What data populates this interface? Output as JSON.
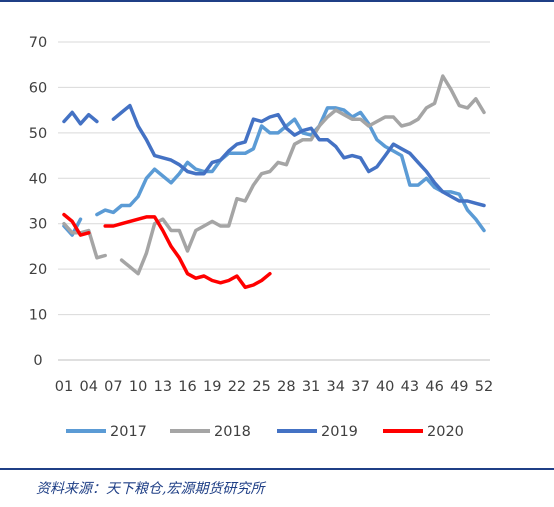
{
  "chart_data": {
    "type": "line",
    "xlabels": [
      "01",
      "04",
      "07",
      "10",
      "13",
      "16",
      "19",
      "22",
      "25",
      "28",
      "31",
      "34",
      "37",
      "40",
      "43",
      "46",
      "49",
      "52"
    ],
    "ylim": [
      0,
      70
    ],
    "yticks": [
      "0",
      "10",
      "20",
      "30",
      "40",
      "50",
      "60",
      "70"
    ],
    "grid": true,
    "legend": "bottom",
    "series": [
      {
        "name": "2017",
        "color": "#5b9bd5",
        "points": [
          [
            1,
            29.5
          ],
          [
            2,
            27.5
          ],
          [
            3,
            31
          ],
          [
            5,
            32
          ],
          [
            6,
            33
          ],
          [
            7,
            32.5
          ],
          [
            8,
            34
          ],
          [
            9,
            34
          ],
          [
            10,
            36
          ],
          [
            11,
            40
          ],
          [
            12,
            42
          ],
          [
            13,
            40.5
          ],
          [
            14,
            39
          ],
          [
            15,
            41
          ],
          [
            16,
            43.5
          ],
          [
            17,
            42
          ],
          [
            18,
            41.5
          ],
          [
            19,
            41.5
          ],
          [
            20,
            44
          ],
          [
            21,
            45.5
          ],
          [
            22,
            45.5
          ],
          [
            23,
            45.5
          ],
          [
            24,
            46.5
          ],
          [
            25,
            51.5
          ],
          [
            26,
            50
          ],
          [
            27,
            50
          ],
          [
            28,
            51.5
          ],
          [
            29,
            53
          ],
          [
            30,
            50
          ],
          [
            31,
            49.5
          ],
          [
            32,
            51.5
          ],
          [
            33,
            55.5
          ],
          [
            34,
            55.5
          ],
          [
            35,
            55
          ],
          [
            36,
            53.5
          ],
          [
            37,
            54.5
          ],
          [
            38,
            52
          ],
          [
            39,
            48.5
          ],
          [
            40,
            47
          ],
          [
            41,
            46
          ],
          [
            42,
            45
          ],
          [
            43,
            38.5
          ],
          [
            44,
            38.5
          ],
          [
            45,
            40
          ],
          [
            46,
            38
          ],
          [
            47,
            37
          ],
          [
            48,
            37
          ],
          [
            49,
            36.5
          ],
          [
            50,
            33
          ],
          [
            51,
            31
          ],
          [
            52,
            28.5
          ]
        ]
      },
      {
        "name": "2018",
        "color": "#a5a5a5",
        "points": [
          [
            1,
            30
          ],
          [
            2,
            28
          ],
          [
            3,
            28
          ],
          [
            4,
            28.5
          ],
          [
            5,
            22.5
          ],
          [
            6,
            23
          ],
          [
            8,
            22
          ],
          [
            9,
            20.5
          ],
          [
            10,
            19
          ],
          [
            11,
            23.5
          ],
          [
            12,
            30
          ],
          [
            13,
            31
          ],
          [
            14,
            28.5
          ],
          [
            15,
            28.5
          ],
          [
            16,
            24
          ],
          [
            17,
            28.5
          ],
          [
            18,
            29.5
          ],
          [
            19,
            30.5
          ],
          [
            20,
            29.5
          ],
          [
            21,
            29.5
          ],
          [
            22,
            35.5
          ],
          [
            23,
            35
          ],
          [
            24,
            38.5
          ],
          [
            25,
            41
          ],
          [
            26,
            41.5
          ],
          [
            27,
            43.5
          ],
          [
            28,
            43
          ],
          [
            29,
            47.5
          ],
          [
            30,
            48.5
          ],
          [
            31,
            48.5
          ],
          [
            32,
            51.5
          ],
          [
            33,
            53.5
          ],
          [
            34,
            55
          ],
          [
            35,
            54
          ],
          [
            36,
            53
          ],
          [
            37,
            53
          ],
          [
            38,
            51.5
          ],
          [
            39,
            52.5
          ],
          [
            40,
            53.5
          ],
          [
            41,
            53.5
          ],
          [
            42,
            51.5
          ],
          [
            43,
            52
          ],
          [
            44,
            53
          ],
          [
            45,
            55.5
          ],
          [
            46,
            56.5
          ],
          [
            47,
            62.5
          ],
          [
            48,
            59.5
          ],
          [
            49,
            56
          ],
          [
            50,
            55.5
          ],
          [
            51,
            57.5
          ],
          [
            52,
            54.5
          ]
        ]
      },
      {
        "name": "2019",
        "color": "#4472c4",
        "points": [
          [
            1,
            52.5
          ],
          [
            2,
            54.5
          ],
          [
            3,
            52
          ],
          [
            4,
            54
          ],
          [
            5,
            52.5
          ],
          [
            7,
            53
          ],
          [
            8,
            54.5
          ],
          [
            9,
            56
          ],
          [
            10,
            51.5
          ],
          [
            11,
            48.5
          ],
          [
            12,
            45
          ],
          [
            13,
            44.5
          ],
          [
            14,
            44
          ],
          [
            15,
            43
          ],
          [
            16,
            41.5
          ],
          [
            17,
            41
          ],
          [
            18,
            41
          ],
          [
            19,
            43.5
          ],
          [
            20,
            44
          ],
          [
            21,
            46
          ],
          [
            22,
            47.5
          ],
          [
            23,
            48
          ],
          [
            24,
            53
          ],
          [
            25,
            52.5
          ],
          [
            26,
            53.5
          ],
          [
            27,
            54
          ],
          [
            28,
            51
          ],
          [
            29,
            49.5
          ],
          [
            30,
            50.5
          ],
          [
            31,
            51
          ],
          [
            32,
            48.5
          ],
          [
            33,
            48.5
          ],
          [
            34,
            47
          ],
          [
            35,
            44.5
          ],
          [
            36,
            45
          ],
          [
            37,
            44.5
          ],
          [
            38,
            41.5
          ],
          [
            39,
            42.5
          ],
          [
            40,
            45
          ],
          [
            41,
            47.5
          ],
          [
            42,
            46.5
          ],
          [
            43,
            45.5
          ],
          [
            44,
            43.5
          ],
          [
            45,
            41.5
          ],
          [
            46,
            39
          ],
          [
            47,
            37
          ],
          [
            48,
            36
          ],
          [
            49,
            35
          ],
          [
            50,
            35
          ],
          [
            51,
            34.5
          ],
          [
            52,
            34
          ]
        ]
      },
      {
        "name": "2020",
        "color": "#ff0000",
        "points": [
          [
            1,
            32
          ],
          [
            2,
            30.5
          ],
          [
            3,
            27.5
          ],
          [
            4,
            28
          ],
          [
            6,
            29.5
          ],
          [
            7,
            29.5
          ],
          [
            8,
            30
          ],
          [
            9,
            30.5
          ],
          [
            10,
            31
          ],
          [
            11,
            31.5
          ],
          [
            12,
            31.5
          ],
          [
            13,
            28.5
          ],
          [
            14,
            25
          ],
          [
            15,
            22.5
          ],
          [
            16,
            19
          ],
          [
            17,
            18
          ],
          [
            18,
            18.5
          ],
          [
            19,
            17.5
          ],
          [
            20,
            17
          ],
          [
            21,
            17.5
          ],
          [
            22,
            18.5
          ],
          [
            23,
            16
          ],
          [
            24,
            16.5
          ],
          [
            25,
            17.5
          ],
          [
            26,
            19
          ]
        ]
      }
    ]
  },
  "source": "资料来源：天下粮仓,宏源期货研究所"
}
